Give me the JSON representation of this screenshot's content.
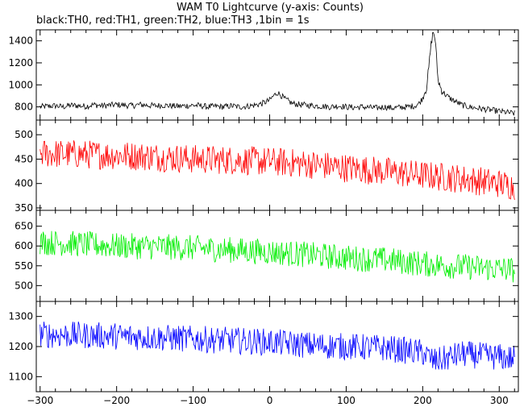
{
  "chart_data": {
    "type": "line",
    "title": "WAM T0 Lightcurve (y-axis: Counts)",
    "subtitle": "black:TH0, red:TH1, green:TH2, blue:TH3 ,1bin = 1s",
    "x_range": [
      -305,
      325
    ],
    "x_ticks": [
      -300,
      -200,
      -100,
      0,
      100,
      200,
      300
    ],
    "x_tick_labels": [
      "−300",
      "−200",
      "−100",
      "0",
      "100",
      "200",
      "300"
    ],
    "panels": [
      {
        "series": "TH0",
        "color": "#000000",
        "ylim": [
          680,
          1500
        ],
        "y_ticks": [
          800,
          1000,
          1200,
          1400
        ],
        "y_tick_labels": [
          "800",
          "1000",
          "1200",
          "1400"
        ],
        "x": [
          -300,
          -290,
          -280,
          -270,
          -260,
          -250,
          -240,
          -230,
          -220,
          -210,
          -200,
          -190,
          -180,
          -170,
          -160,
          -150,
          -140,
          -130,
          -120,
          -110,
          -100,
          -90,
          -80,
          -70,
          -60,
          -50,
          -40,
          -30,
          -20,
          -10,
          0,
          5,
          10,
          15,
          20,
          30,
          40,
          50,
          60,
          70,
          80,
          90,
          100,
          110,
          120,
          130,
          140,
          150,
          160,
          170,
          180,
          190,
          195,
          200,
          205,
          208,
          210,
          212,
          214,
          216,
          218,
          220,
          223,
          226,
          230,
          235,
          240,
          245,
          250,
          260,
          270,
          280,
          290,
          300,
          310,
          320
        ],
        "y": [
          800,
          805,
          810,
          800,
          815,
          810,
          805,
          820,
          810,
          815,
          820,
          815,
          810,
          820,
          815,
          810,
          815,
          810,
          805,
          810,
          815,
          810,
          800,
          805,
          800,
          810,
          800,
          805,
          815,
          830,
          860,
          900,
          930,
          905,
          870,
          830,
          820,
          815,
          810,
          805,
          800,
          810,
          800,
          795,
          800,
          795,
          790,
          800,
          790,
          795,
          800,
          810,
          830,
          880,
          980,
          1150,
          1300,
          1420,
          1480,
          1430,
          1250,
          1050,
          980,
          940,
          910,
          880,
          860,
          840,
          820,
          800,
          790,
          780,
          770,
          760,
          750,
          740
        ],
        "noise": 28
      },
      {
        "series": "TH1",
        "color": "#ff0000",
        "ylim": [
          345,
          530
        ],
        "y_ticks": [
          350,
          400,
          450,
          500
        ],
        "y_tick_labels": [
          "350",
          "400",
          "450",
          "500"
        ],
        "x": [
          -300,
          -250,
          -200,
          -150,
          -100,
          -50,
          0,
          50,
          100,
          150,
          200,
          250,
          300,
          320
        ],
        "y": [
          462,
          460,
          458,
          455,
          450,
          448,
          445,
          440,
          432,
          425,
          417,
          410,
          400,
          395
        ],
        "noise": 30
      },
      {
        "series": "TH2",
        "color": "#00ee00",
        "ylim": [
          460,
          690
        ],
        "y_ticks": [
          500,
          550,
          600,
          650
        ],
        "y_tick_labels": [
          "500",
          "550",
          "600",
          "650"
        ],
        "x": [
          -300,
          -250,
          -200,
          -150,
          -100,
          -50,
          0,
          50,
          100,
          150,
          200,
          250,
          300,
          320
        ],
        "y": [
          610,
          605,
          600,
          598,
          595,
          590,
          585,
          578,
          570,
          565,
          555,
          548,
          542,
          540
        ],
        "noise": 33
      },
      {
        "series": "TH3",
        "color": "#0000ff",
        "ylim": [
          1050,
          1350
        ],
        "y_ticks": [
          1100,
          1200,
          1300
        ],
        "y_tick_labels": [
          "1100",
          "1200",
          "1300"
        ],
        "x": [
          -300,
          -250,
          -200,
          -150,
          -100,
          -50,
          0,
          50,
          100,
          150,
          200,
          215,
          230,
          250,
          300,
          320
        ],
        "y": [
          1240,
          1238,
          1235,
          1230,
          1225,
          1220,
          1215,
          1205,
          1200,
          1195,
          1180,
          1150,
          1160,
          1175,
          1165,
          1160
        ],
        "noise": 45
      }
    ]
  }
}
